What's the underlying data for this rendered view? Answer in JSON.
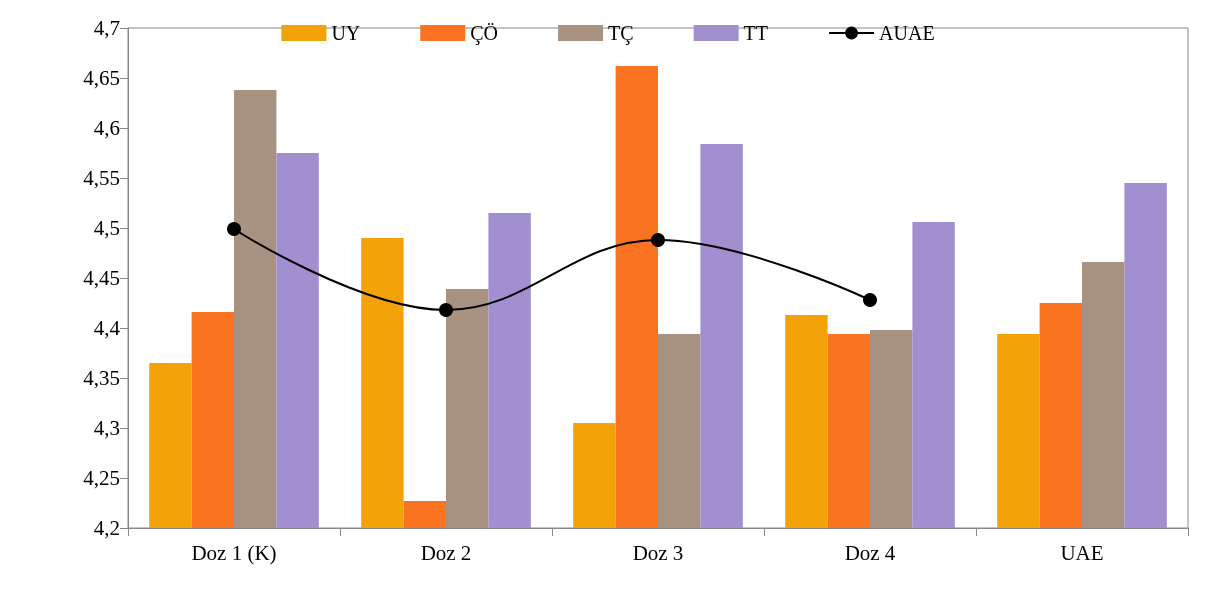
{
  "chart_data": {
    "type": "bar",
    "categories": [
      "Doz 1 (K)",
      "Doz 2",
      "Doz 3",
      "Doz 4",
      "UAE"
    ],
    "series": [
      {
        "name": "UY",
        "color": "#f4a20a",
        "values": [
          4.365,
          4.49,
          4.305,
          4.413,
          4.394
        ]
      },
      {
        "name": "ÇÖ",
        "color": "#f97320",
        "values": [
          4.416,
          4.227,
          4.662,
          4.394,
          4.425
        ]
      },
      {
        "name": "TÇ",
        "color": "#a89282",
        "values": [
          4.638,
          4.439,
          4.394,
          4.398,
          4.466
        ]
      },
      {
        "name": "TT",
        "color": "#a18fd0",
        "values": [
          4.575,
          4.515,
          4.584,
          4.506,
          4.545
        ]
      },
      {
        "name": "AUAE",
        "type": "line",
        "color": "#000000",
        "marker": "circle",
        "line_style": "solid",
        "values": [
          4.499,
          4.418,
          4.488,
          4.428,
          null
        ]
      }
    ],
    "ylim": [
      4.2,
      4.7
    ],
    "yticks": [
      {
        "value": 4.2,
        "label": "4,2"
      },
      {
        "value": 4.25,
        "label": "4,25"
      },
      {
        "value": 4.3,
        "label": "4,3"
      },
      {
        "value": 4.35,
        "label": "4,35"
      },
      {
        "value": 4.4,
        "label": "4,4"
      },
      {
        "value": 4.45,
        "label": "4,45"
      },
      {
        "value": 4.5,
        "label": "4,5"
      },
      {
        "value": 4.55,
        "label": "4,55"
      },
      {
        "value": 4.6,
        "label": "4,6"
      },
      {
        "value": 4.65,
        "label": "4,65"
      },
      {
        "value": 4.7,
        "label": "4,7"
      }
    ],
    "grid": false,
    "legend": "top"
  }
}
